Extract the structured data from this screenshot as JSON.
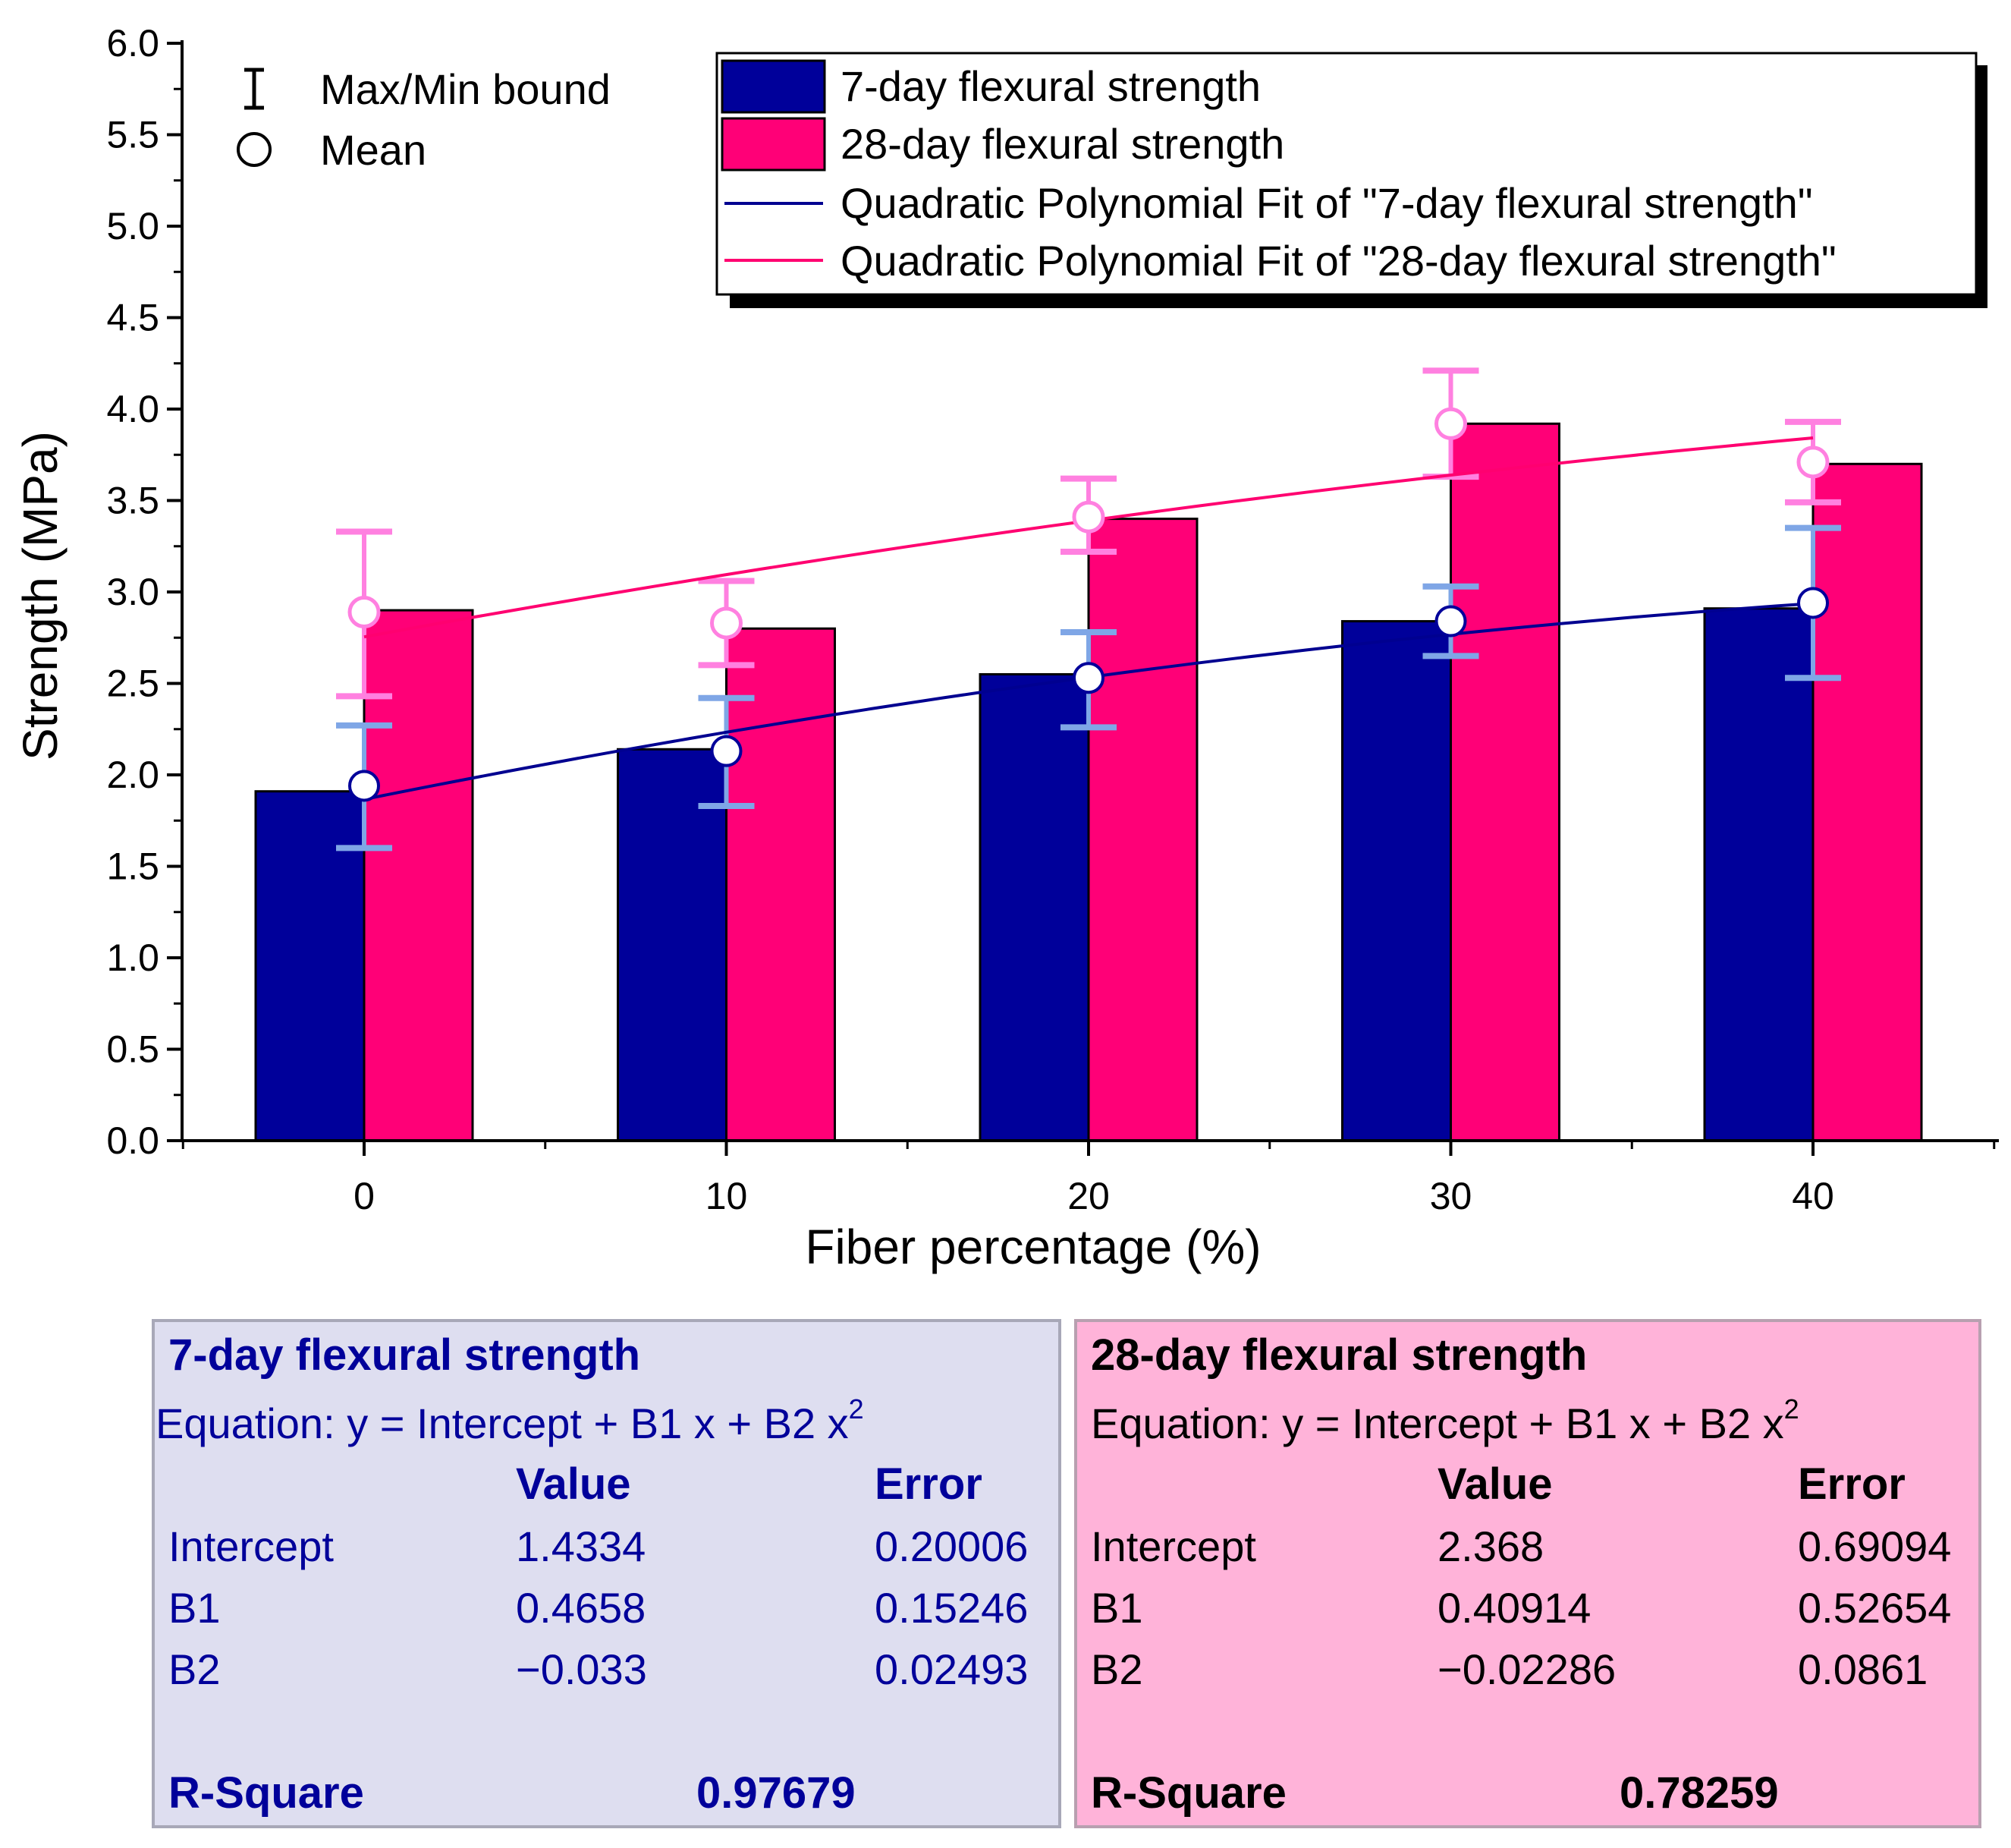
{
  "chart_data": {
    "type": "bar",
    "categories": [
      "0",
      "10",
      "20",
      "30",
      "40"
    ],
    "x": [
      0,
      10,
      20,
      30,
      40
    ],
    "xlabel": "Fiber percentage (%)",
    "ylabel": "Strength (MPa)",
    "ylim": [
      0,
      6
    ],
    "yticks": [
      "0.0",
      "0.5",
      "1.0",
      "1.5",
      "2.0",
      "2.5",
      "3.0",
      "3.5",
      "4.0",
      "4.5",
      "5.0",
      "5.5",
      "6.0"
    ],
    "series": [
      {
        "name": "7-day flexural strength",
        "color": "#00009A",
        "values": [
          1.91,
          2.14,
          2.55,
          2.84,
          2.91
        ],
        "mean": [
          1.94,
          2.13,
          2.53,
          2.84,
          2.94
        ],
        "max": [
          2.27,
          2.42,
          2.78,
          3.03,
          3.35
        ],
        "min": [
          1.6,
          1.83,
          2.26,
          2.65,
          2.53
        ],
        "errorbar_color": "#7FA6E6",
        "fit_label": "Quadratic Polynomial Fit of \"7-day flexural strength\"",
        "fit_color": "#000090",
        "fit": {
          "intercept": 1.4334,
          "b1": 0.4658,
          "b2": -0.033
        }
      },
      {
        "name": "28-day flexural strength",
        "color": "#FF0077",
        "values": [
          2.9,
          2.8,
          3.4,
          3.92,
          3.7
        ],
        "mean": [
          2.89,
          2.83,
          3.41,
          3.92,
          3.71
        ],
        "max": [
          3.33,
          3.06,
          3.62,
          4.21,
          3.93
        ],
        "min": [
          2.43,
          2.6,
          3.22,
          3.63,
          3.49
        ],
        "errorbar_color": "#FF80E0",
        "fit_label": "Quadratic Polynomial Fit of \"28-day flexural strength\"",
        "fit_color": "#FF0070",
        "fit": {
          "intercept": 2.368,
          "b1": 0.40914,
          "b2": -0.02286
        }
      }
    ],
    "marker_legend": {
      "errorbar": "Max/Min bound",
      "mean": "Mean"
    },
    "legend_position": "top-right"
  },
  "fit_panels": [
    {
      "title": "7-day flexural strength",
      "equation_prefix": "Equation: y = Intercept + B1 x + B2 x",
      "equation_sup": "2",
      "col_value": "Value",
      "col_error": "Error",
      "rows": [
        {
          "name": "Intercept",
          "value": "1.4334",
          "error": "0.20006"
        },
        {
          "name": "B1",
          "value": "0.4658",
          "error": "0.15246"
        },
        {
          "name": "B2",
          "value": "−0.033",
          "error": "0.02493"
        }
      ],
      "rsq_label": "R-Square",
      "rsq_value": "0.97679",
      "bg": "#DEDEF0",
      "border": "#A8A8B8",
      "text_color": "#00009A",
      "head_color": "#00009A"
    },
    {
      "title": "28-day flexural strength",
      "equation_prefix": "Equation: y = Intercept + B1 x + B2 x",
      "equation_sup": "2",
      "col_value": "Value",
      "col_error": "Error",
      "rows": [
        {
          "name": "Intercept",
          "value": "2.368",
          "error": "0.69094"
        },
        {
          "name": "B1",
          "value": "0.40914",
          "error": "0.52654"
        },
        {
          "name": "B2",
          "value": "−0.02286",
          "error": "0.0861"
        }
      ],
      "rsq_label": "R-Square",
      "rsq_value": "0.78259",
      "bg": "#FFB3D9",
      "border": "#B8A0B0",
      "text_color": "#000000",
      "head_color": "#000000"
    }
  ]
}
